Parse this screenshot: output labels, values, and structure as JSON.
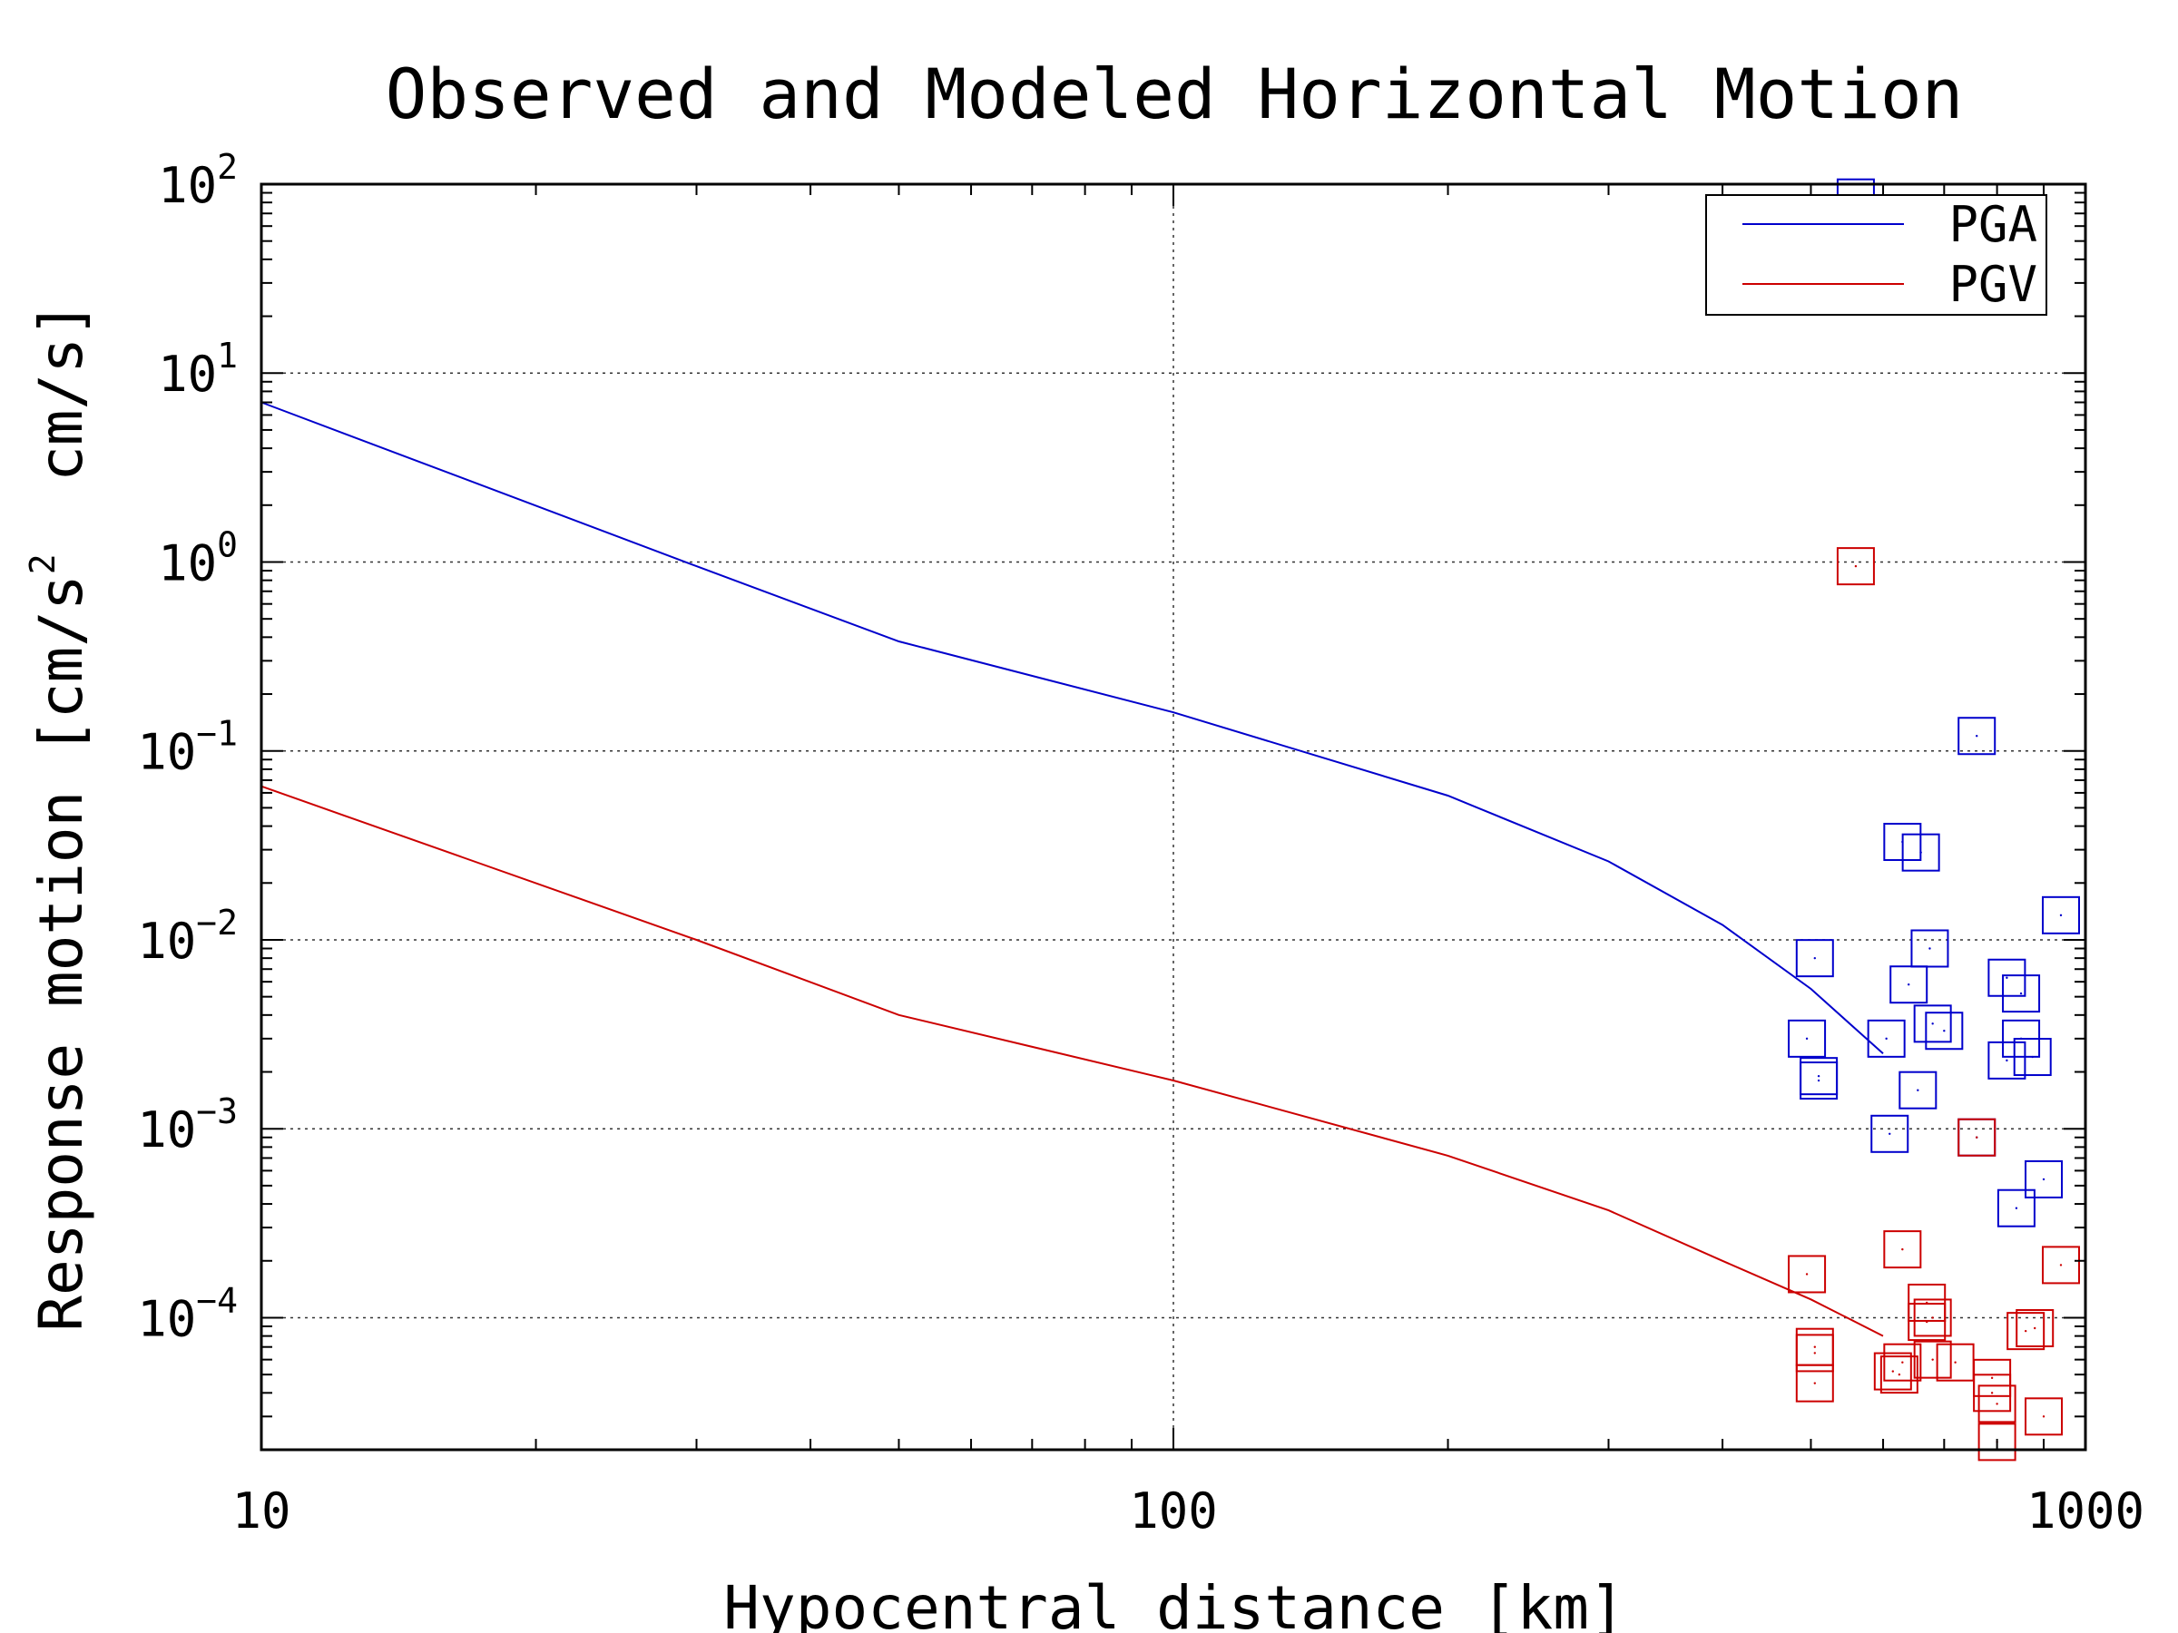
{
  "chart_data": {
    "type": "scatter",
    "title": "Observed and Modeled Horizontal Motion",
    "xlabel": "Hypocentral distance [km]",
    "ylabel": "Response motion [cm/s² cm/s]",
    "ylabel_parts": {
      "pre": "Response motion [cm/s",
      "sup": "2",
      "post": "  cm/s]"
    },
    "xscale": "log",
    "yscale": "log",
    "xlim": [
      10,
      1000
    ],
    "ylim": [
      2e-05,
      100
    ],
    "x_ticks": [
      {
        "value": 10,
        "label": "10"
      },
      {
        "value": 100,
        "label": "100"
      },
      {
        "value": 1000,
        "label": "1000"
      }
    ],
    "y_ticks": [
      {
        "value": 100,
        "base": "10",
        "exp": "2"
      },
      {
        "value": 10,
        "base": "10",
        "exp": "1"
      },
      {
        "value": 1,
        "base": "10",
        "exp": "0"
      },
      {
        "value": 0.1,
        "base": "10",
        "exp": "−1"
      },
      {
        "value": 0.01,
        "base": "10",
        "exp": "−2"
      },
      {
        "value": 0.001,
        "base": "10",
        "exp": "−3"
      },
      {
        "value": 0.0001,
        "base": "10",
        "exp": "−4"
      }
    ],
    "grid": true,
    "legend_position": "top-right",
    "series": [
      {
        "name": "PGA",
        "color": "#0000cc",
        "model_line": [
          {
            "x": 10,
            "y": 7.0
          },
          {
            "x": 30,
            "y": 0.95
          },
          {
            "x": 50,
            "y": 0.38
          },
          {
            "x": 100,
            "y": 0.16
          },
          {
            "x": 200,
            "y": 0.058
          },
          {
            "x": 300,
            "y": 0.026
          },
          {
            "x": 400,
            "y": 0.012
          },
          {
            "x": 500,
            "y": 0.0055
          },
          {
            "x": 600,
            "y": 0.0025
          }
        ],
        "points": [
          {
            "x": 560,
            "y": 85
          },
          {
            "x": 760,
            "y": 0.12
          },
          {
            "x": 630,
            "y": 0.033
          },
          {
            "x": 660,
            "y": 0.029
          },
          {
            "x": 940,
            "y": 0.0135
          },
          {
            "x": 505,
            "y": 0.008
          },
          {
            "x": 675,
            "y": 0.009
          },
          {
            "x": 640,
            "y": 0.0058
          },
          {
            "x": 820,
            "y": 0.0063
          },
          {
            "x": 850,
            "y": 0.0052
          },
          {
            "x": 680,
            "y": 0.0036
          },
          {
            "x": 700,
            "y": 0.0033
          },
          {
            "x": 495,
            "y": 0.003
          },
          {
            "x": 605,
            "y": 0.003
          },
          {
            "x": 850,
            "y": 0.003
          },
          {
            "x": 820,
            "y": 0.0023
          },
          {
            "x": 875,
            "y": 0.0024
          },
          {
            "x": 510,
            "y": 0.0019
          },
          {
            "x": 510,
            "y": 0.0018
          },
          {
            "x": 655,
            "y": 0.0016
          },
          {
            "x": 610,
            "y": 0.00094
          },
          {
            "x": 760,
            "y": 0.0009
          },
          {
            "x": 900,
            "y": 0.00054
          },
          {
            "x": 840,
            "y": 0.00038
          }
        ]
      },
      {
        "name": "PGV",
        "color": "#cc0000",
        "model_line": [
          {
            "x": 10,
            "y": 0.065
          },
          {
            "x": 30,
            "y": 0.01
          },
          {
            "x": 50,
            "y": 0.004
          },
          {
            "x": 100,
            "y": 0.0018
          },
          {
            "x": 200,
            "y": 0.00072
          },
          {
            "x": 300,
            "y": 0.00037
          },
          {
            "x": 400,
            "y": 0.0002
          },
          {
            "x": 500,
            "y": 0.000125
          },
          {
            "x": 600,
            "y": 8e-05
          }
        ],
        "points": [
          {
            "x": 560,
            "y": 0.95
          },
          {
            "x": 760,
            "y": 0.0009
          },
          {
            "x": 630,
            "y": 0.00023
          },
          {
            "x": 940,
            "y": 0.00019
          },
          {
            "x": 495,
            "y": 0.00017
          },
          {
            "x": 670,
            "y": 0.00012
          },
          {
            "x": 680,
            "y": 0.0001
          },
          {
            "x": 670,
            "y": 9.5e-05
          },
          {
            "x": 860,
            "y": 8.5e-05
          },
          {
            "x": 880,
            "y": 8.8e-05
          },
          {
            "x": 505,
            "y": 7e-05
          },
          {
            "x": 505,
            "y": 6.5e-05
          },
          {
            "x": 680,
            "y": 6e-05
          },
          {
            "x": 720,
            "y": 5.8e-05
          },
          {
            "x": 630,
            "y": 5.8e-05
          },
          {
            "x": 615,
            "y": 5.2e-05
          },
          {
            "x": 625,
            "y": 5e-05
          },
          {
            "x": 505,
            "y": 4.5e-05
          },
          {
            "x": 790,
            "y": 4.8e-05
          },
          {
            "x": 790,
            "y": 4e-05
          },
          {
            "x": 800,
            "y": 3.5e-05
          },
          {
            "x": 900,
            "y": 3e-05
          },
          {
            "x": 800,
            "y": 2.2e-05
          }
        ]
      }
    ]
  }
}
